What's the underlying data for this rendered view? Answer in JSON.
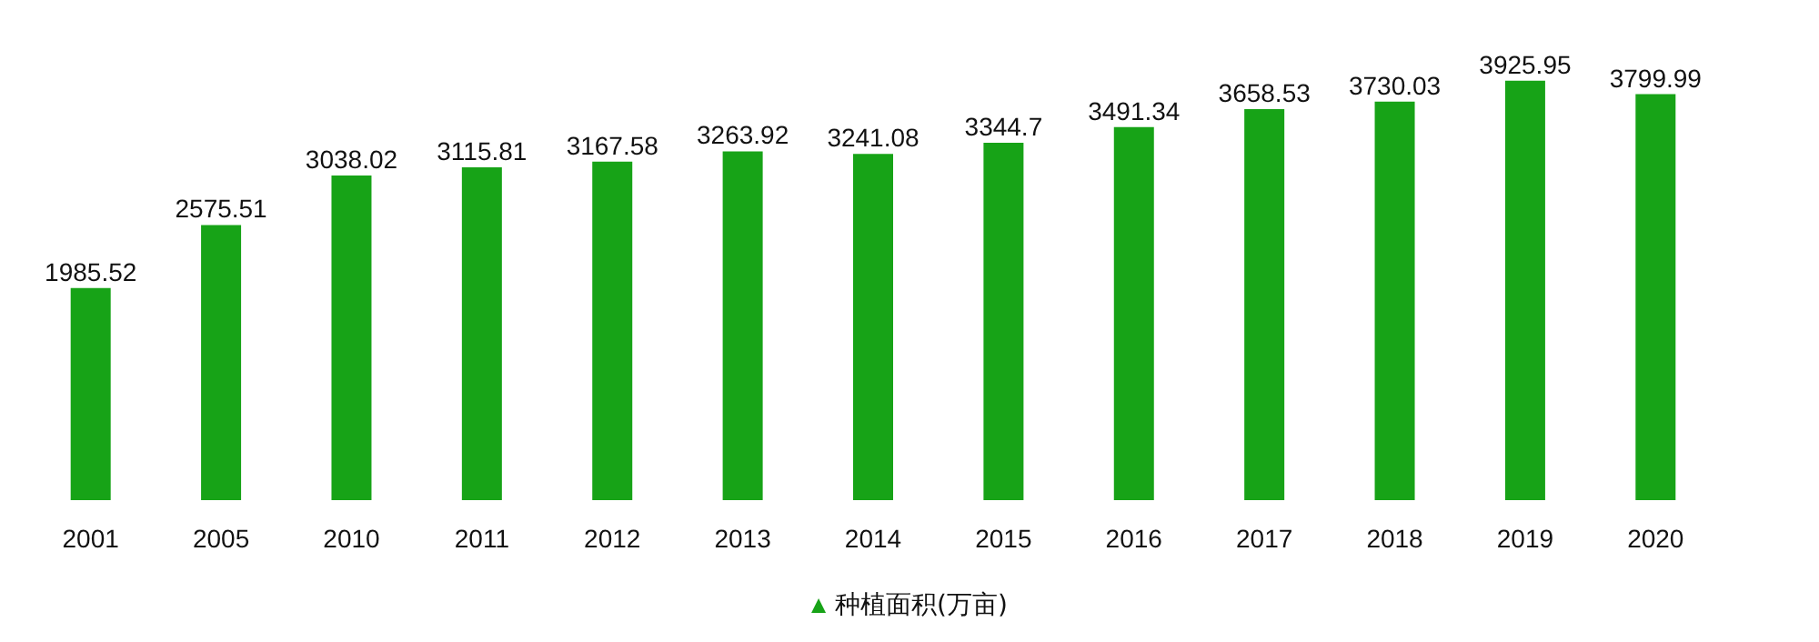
{
  "chart_data": {
    "type": "bar",
    "categories": [
      "2001",
      "2005",
      "2010",
      "2011",
      "2012",
      "2013",
      "2014",
      "2015",
      "2016",
      "2017",
      "2018",
      "2019",
      "2020"
    ],
    "series": [
      {
        "name": "种植面积(万亩)",
        "color": "#17a317",
        "values": [
          1985.52,
          2575.51,
          3038.02,
          3115.81,
          3167.58,
          3263.92,
          3241.08,
          3344.7,
          3491.34,
          3658.53,
          3730.03,
          3925.95,
          3799.99
        ]
      }
    ],
    "data_labels": true,
    "legend": "bottom",
    "tick_labels": "x"
  }
}
